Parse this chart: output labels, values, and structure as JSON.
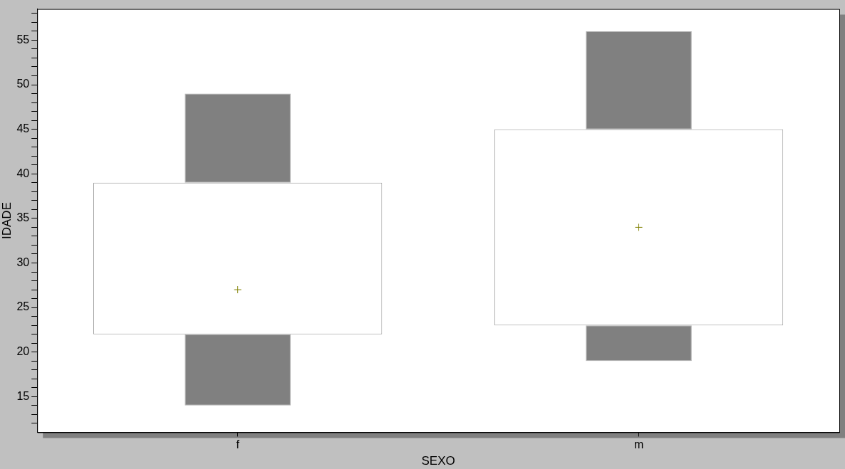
{
  "chart_data": {
    "type": "bar",
    "xlabel": "SEXO",
    "ylabel": "IDADE",
    "categories": [
      "f",
      "m"
    ],
    "ylim": [
      11,
      58.5
    ],
    "grid": false,
    "yticks": [
      {
        "value": 12,
        "label": null
      },
      {
        "value": 13,
        "label": null
      },
      {
        "value": 14,
        "label": null
      },
      15,
      {
        "value": 16,
        "label": null
      },
      {
        "value": 17,
        "label": null
      },
      {
        "value": 18,
        "label": null
      },
      {
        "value": 19,
        "label": null
      },
      20,
      {
        "value": 21,
        "label": null
      },
      {
        "value": 22,
        "label": null
      },
      {
        "value": 23,
        "label": null
      },
      {
        "value": 24,
        "label": null
      },
      25,
      {
        "value": 26,
        "label": null
      },
      {
        "value": 27,
        "label": null
      },
      {
        "value": 28,
        "label": null
      },
      {
        "value": 29,
        "label": null
      },
      30,
      {
        "value": 31,
        "label": null
      },
      {
        "value": 32,
        "label": null
      },
      {
        "value": 33,
        "label": null
      },
      {
        "value": 34,
        "label": null
      },
      35,
      {
        "value": 36,
        "label": null
      },
      {
        "value": 37,
        "label": null
      },
      {
        "value": 38,
        "label": null
      },
      {
        "value": 39,
        "label": null
      },
      40,
      {
        "value": 41,
        "label": null
      },
      {
        "value": 42,
        "label": null
      },
      {
        "value": 43,
        "label": null
      },
      {
        "value": 44,
        "label": null
      },
      45,
      {
        "value": 46,
        "label": null
      },
      {
        "value": 47,
        "label": null
      },
      {
        "value": 48,
        "label": null
      },
      {
        "value": 49,
        "label": null
      },
      50,
      {
        "value": 51,
        "label": null
      },
      {
        "value": 52,
        "label": null
      },
      {
        "value": 53,
        "label": null
      },
      {
        "value": 54,
        "label": null
      },
      55,
      {
        "value": 56,
        "label": null
      },
      {
        "value": 57,
        "label": null
      },
      {
        "value": 58,
        "label": null
      }
    ],
    "series": [
      {
        "color": "#808080",
        "base": [
          14,
          19
        ],
        "values": [
          8,
          4
        ]
      },
      {
        "color": "#ffffff",
        "base": [
          22,
          23
        ],
        "values": [
          17,
          22
        ]
      },
      {
        "color": "#808080",
        "base": [
          39,
          45
        ],
        "values": [
          10,
          11
        ]
      },
      {
        "type": "scatter",
        "color": "#808000",
        "marker": "cross",
        "x": [
          "f",
          "m"
        ],
        "values": [
          27,
          34
        ]
      }
    ]
  }
}
